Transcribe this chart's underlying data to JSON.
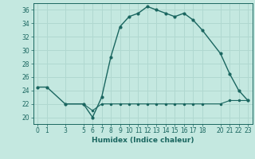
{
  "xlabel": "Humidex (Indice chaleur)",
  "ylabel": "",
  "background_color": "#c4e8e0",
  "line_color": "#1a6660",
  "grid_color": "#b0d8d0",
  "xlim": [
    -0.5,
    23.5
  ],
  "ylim": [
    19.0,
    37.0
  ],
  "yticks": [
    20,
    22,
    24,
    26,
    28,
    30,
    32,
    34,
    36
  ],
  "xticks": [
    0,
    1,
    3,
    5,
    6,
    7,
    8,
    9,
    10,
    11,
    12,
    13,
    14,
    15,
    16,
    17,
    18,
    20,
    21,
    22,
    23
  ],
  "curve1_x": [
    0,
    1,
    3,
    5,
    6,
    7,
    8,
    9,
    10,
    11,
    12,
    13,
    14,
    15,
    16,
    17,
    18,
    20,
    21,
    22,
    23
  ],
  "curve1_y": [
    24.5,
    24.5,
    22.0,
    22.0,
    20.0,
    23.0,
    29.0,
    33.5,
    35.0,
    35.5,
    36.5,
    36.0,
    35.5,
    35.0,
    35.5,
    34.5,
    33.0,
    29.5,
    26.5,
    24.0,
    22.5
  ],
  "curve2_x": [
    3,
    5,
    6,
    7,
    8,
    9,
    10,
    11,
    12,
    13,
    14,
    15,
    16,
    17,
    18,
    20,
    21,
    22,
    23
  ],
  "curve2_y": [
    22.0,
    22.0,
    21.0,
    22.0,
    22.0,
    22.0,
    22.0,
    22.0,
    22.0,
    22.0,
    22.0,
    22.0,
    22.0,
    22.0,
    22.0,
    22.0,
    22.5,
    22.5,
    22.5
  ]
}
